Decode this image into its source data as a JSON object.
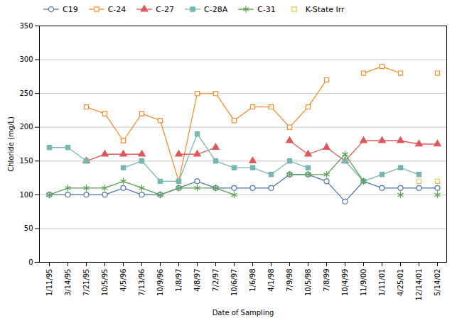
{
  "chart_data": {
    "type": "line",
    "x_label": "Date of Sampling",
    "y_label": "Chloride (mg/L)",
    "categories": [
      "1/11/95",
      "3/14/95",
      "7/21/95",
      "10/5/95",
      "4/5/96",
      "7/13/96",
      "10/9/96",
      "1/8/97",
      "4/8/97",
      "7/2/97",
      "10/6/97",
      "1/6/98",
      "4/1/98",
      "7/9/98",
      "10/5/98",
      "7/8/99",
      "10/4/99",
      "11/9/00",
      "1/11/01",
      "4/25/01",
      "12/14/01",
      "5/14/02"
    ],
    "series": [
      {
        "name": "C19",
        "marker": "circle-open",
        "line_style": "solid",
        "values": [
          100,
          100,
          100,
          100,
          110,
          100,
          100,
          110,
          120,
          110,
          110,
          110,
          110,
          130,
          130,
          120,
          90,
          120,
          110,
          110,
          110,
          110
        ]
      },
      {
        "name": "C-24",
        "marker": "square-open",
        "line_style": "solid",
        "values": [
          null,
          null,
          230,
          220,
          180,
          220,
          210,
          120,
          250,
          250,
          210,
          230,
          230,
          200,
          230,
          270,
          null,
          280,
          290,
          280,
          null,
          280
        ]
      },
      {
        "name": "C-27",
        "marker": "triangle",
        "line_style": "solid",
        "values": [
          null,
          null,
          150,
          160,
          160,
          160,
          null,
          160,
          160,
          170,
          null,
          150,
          null,
          180,
          160,
          170,
          150,
          180,
          180,
          180,
          175,
          175
        ]
      },
      {
        "name": "C-28A",
        "marker": "square",
        "line_style": "solid",
        "values": [
          170,
          170,
          150,
          null,
          140,
          150,
          120,
          120,
          190,
          150,
          140,
          140,
          130,
          150,
          140,
          null,
          150,
          120,
          130,
          140,
          130,
          null
        ]
      },
      {
        "name": "C-31",
        "marker": "asterisk",
        "line_style": "solid",
        "values": [
          100,
          110,
          110,
          110,
          120,
          110,
          100,
          110,
          110,
          110,
          100,
          null,
          null,
          130,
          130,
          130,
          160,
          120,
          null,
          100,
          null,
          100
        ]
      },
      {
        "name": "K-State Irr",
        "marker": "square-open",
        "line_style": "none",
        "values": [
          null,
          null,
          null,
          null,
          null,
          null,
          null,
          null,
          null,
          null,
          null,
          null,
          null,
          null,
          null,
          null,
          null,
          null,
          null,
          null,
          120,
          120
        ]
      }
    ],
    "ylim": [
      0,
      350
    ],
    "yticks": [
      0,
      50,
      100,
      150,
      200,
      250,
      300,
      350
    ],
    "grid": true,
    "legend": "top left"
  }
}
